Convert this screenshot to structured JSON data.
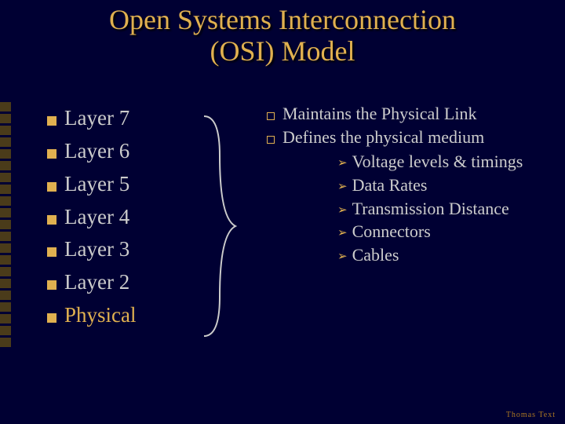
{
  "title_line1": "Open Systems Interconnection",
  "title_line2": "(OSI) Model",
  "colors": {
    "background": "#000033",
    "accent": "#e0b050",
    "text": "#cccccc",
    "decor": "#4a3b1a",
    "footer": "#aa7722"
  },
  "layers": [
    {
      "label": "Layer 7",
      "active": false
    },
    {
      "label": "Layer 6",
      "active": false
    },
    {
      "label": "Layer 5",
      "active": false
    },
    {
      "label": "Layer 4",
      "active": false
    },
    {
      "label": "Layer 3",
      "active": false
    },
    {
      "label": "Layer 2",
      "active": false
    },
    {
      "label": "Physical",
      "active": true
    }
  ],
  "details": {
    "items": [
      "Maintains the Physical Link",
      "Defines the physical medium"
    ],
    "subitems": [
      "Voltage levels & timings",
      "Data Rates",
      "Transmission Distance",
      "Connectors",
      "Cables"
    ]
  },
  "footer": "Thomas Text",
  "decor_count": 21
}
